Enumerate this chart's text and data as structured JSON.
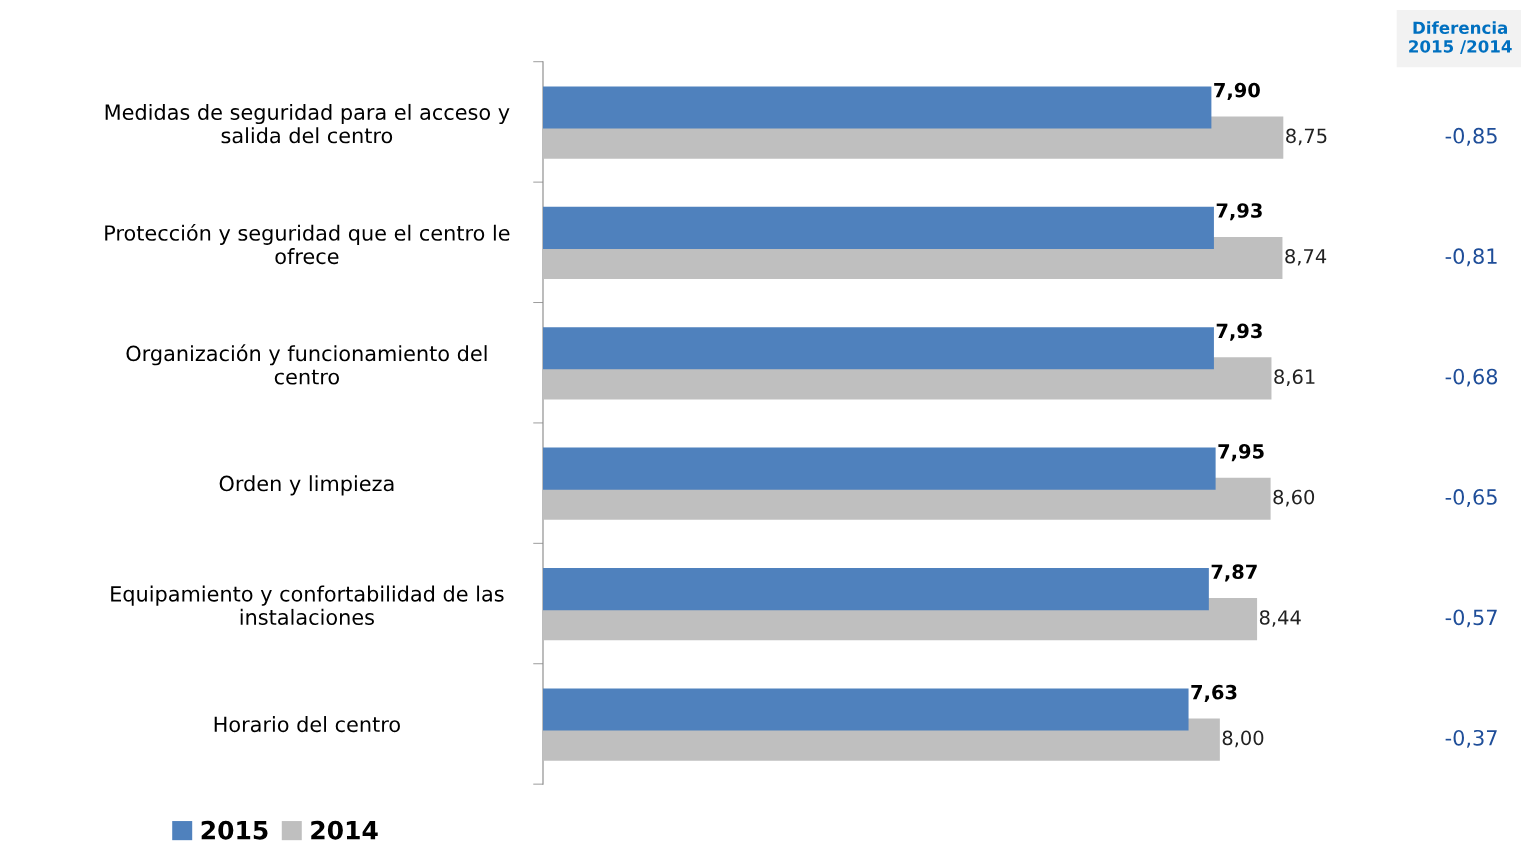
{
  "chart_data": {
    "type": "bar",
    "orientation": "horizontal",
    "categories": [
      "Medidas de seguridad para el acceso y\nsalida del centro",
      "Protección y seguridad que el centro le\nofrece",
      "Organización y funcionamiento del\ncentro",
      "Orden y limpieza",
      "Equipamiento y confortabilidad de las\ninstalaciones",
      "Horario del centro"
    ],
    "series": [
      {
        "name": "2015",
        "color": "#4f81bd",
        "values": [
          7.9,
          7.93,
          7.93,
          7.95,
          7.87,
          7.63
        ],
        "value_labels": [
          "7,90",
          "7,93",
          "7,93",
          "7,95",
          "7,87",
          "7,63"
        ]
      },
      {
        "name": "2014",
        "color": "#bfbfbf",
        "values": [
          8.75,
          8.74,
          8.61,
          8.6,
          8.44,
          8.0
        ],
        "value_labels": [
          "8,75",
          "8,74",
          "8,61",
          "8,60",
          "8,44",
          "8,00"
        ]
      }
    ],
    "annotations": [
      "Diferencia\n2015 /2014",
      "-0,85",
      "-0,81",
      "-0,68",
      "-0,65",
      "-0,57",
      "-0,37"
    ],
    "legend": "bottom left",
    "grid": false
  }
}
